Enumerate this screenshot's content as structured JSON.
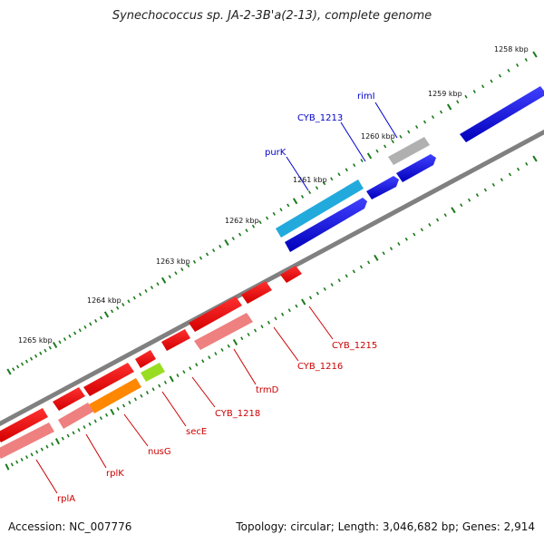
{
  "title": "Synechococcus sp. JA-2-3B'a(2-13), complete genome",
  "footer": {
    "accession": "Accession: NC_007776",
    "summary": "Topology: circular; Length: 3,046,682 bp; Genes: 2,914"
  },
  "colors": {
    "backbone": "#808080",
    "forward_cds": "#0000e0",
    "reverse_cds": "#ee0000",
    "tick": "#1a7a1a",
    "forward_label": "#0000cc",
    "reverse_label": "#cc0000"
  },
  "kbp_labels": [
    "1258 kbp",
    "1259 kbp",
    "1260 kbp",
    "1261 kbp",
    "1262 kbp",
    "1263 kbp",
    "1264 kbp",
    "1265 kbp"
  ],
  "gene_labels": {
    "riml": "rimI",
    "cyb1213": "CYB_1213",
    "purk": "purK",
    "cyb1215": "CYB_1215",
    "cyb1216": "CYB_1216",
    "trmd": "trmD",
    "cyb1218": "CYB_1218",
    "sece": "secE",
    "nusg": "nusG",
    "rplk": "rplK",
    "rpla": "rplA"
  }
}
